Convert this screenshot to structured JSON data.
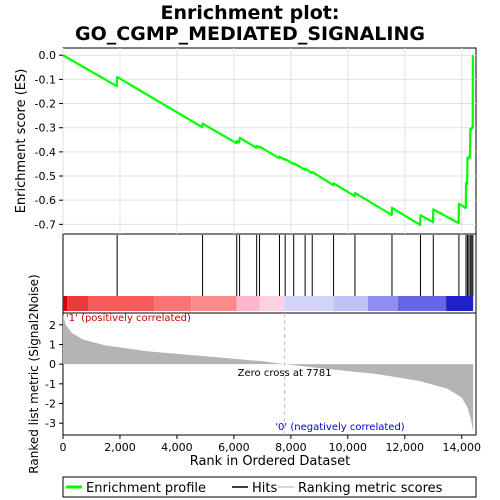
{
  "chart_data": {
    "type": "line",
    "title_line1": "Enrichment plot:",
    "title_line2": "GO_CGMP_MEDIATED_SIGNALING",
    "es_ylabel": "Enrichment score (ES)",
    "metric_ylabel": "Ranked list metric (Signal2Noise)",
    "xlabel": "Rank in Ordered Dataset",
    "xlim": [
      0,
      14500
    ],
    "x_ticks": [
      0,
      2000,
      4000,
      6000,
      8000,
      10000,
      12000,
      14000
    ],
    "x_tick_labels": [
      "0",
      "2,000",
      "4,000",
      "6,000",
      "8,000",
      "10,000",
      "12,000",
      "14,000"
    ],
    "es_ylim": [
      -0.74,
      0.03
    ],
    "es_ticks": [
      0.0,
      -0.1,
      -0.2,
      -0.3,
      -0.4,
      -0.5,
      -0.6,
      -0.7
    ],
    "es_tick_labels": [
      "0.0",
      "-0.1",
      "-0.2",
      "-0.3",
      "-0.4",
      "-0.5",
      "-0.6",
      "-0.7"
    ],
    "metric_ylim": [
      -3.6,
      2.6
    ],
    "metric_ticks": [
      2,
      1,
      0,
      -1,
      -2,
      -3
    ],
    "metric_tick_labels": [
      "2",
      "1",
      "0",
      "-1",
      "-2",
      "-3"
    ],
    "total_ranks": 14400,
    "hits": [
      1900,
      4900,
      6100,
      6200,
      6800,
      6900,
      7600,
      7800,
      8100,
      8500,
      8750,
      9500,
      10250,
      11550,
      12550,
      13000,
      13900,
      14150,
      14200,
      14250,
      14300,
      14350,
      14390
    ],
    "es_points": [
      {
        "x": 0,
        "es": 0.0
      },
      {
        "x": 1890,
        "es": -0.128
      },
      {
        "x": 1900,
        "es": -0.09
      },
      {
        "x": 4890,
        "es": -0.298
      },
      {
        "x": 4900,
        "es": -0.283
      },
      {
        "x": 6090,
        "es": -0.364
      },
      {
        "x": 6100,
        "es": -0.355
      },
      {
        "x": 6190,
        "es": -0.361
      },
      {
        "x": 6200,
        "es": -0.342
      },
      {
        "x": 6790,
        "es": -0.383
      },
      {
        "x": 6800,
        "es": -0.375
      },
      {
        "x": 6890,
        "es": -0.381
      },
      {
        "x": 6900,
        "es": -0.378
      },
      {
        "x": 7590,
        "es": -0.426
      },
      {
        "x": 7600,
        "es": -0.42
      },
      {
        "x": 7790,
        "es": -0.433
      },
      {
        "x": 7800,
        "es": -0.43
      },
      {
        "x": 8090,
        "es": -0.45
      },
      {
        "x": 8100,
        "es": -0.447
      },
      {
        "x": 8490,
        "es": -0.474
      },
      {
        "x": 8500,
        "es": -0.47
      },
      {
        "x": 8740,
        "es": -0.487
      },
      {
        "x": 8750,
        "es": -0.483
      },
      {
        "x": 9490,
        "es": -0.538
      },
      {
        "x": 9500,
        "es": -0.53
      },
      {
        "x": 10240,
        "es": -0.583
      },
      {
        "x": 10250,
        "es": -0.57
      },
      {
        "x": 11540,
        "es": -0.661
      },
      {
        "x": 11550,
        "es": -0.632
      },
      {
        "x": 12540,
        "es": -0.702
      },
      {
        "x": 12550,
        "es": -0.662
      },
      {
        "x": 12990,
        "es": -0.691
      },
      {
        "x": 13000,
        "es": -0.638
      },
      {
        "x": 13890,
        "es": -0.695
      },
      {
        "x": 13900,
        "es": -0.615
      },
      {
        "x": 14140,
        "es": -0.632
      },
      {
        "x": 14150,
        "es": -0.528
      },
      {
        "x": 14190,
        "es": -0.532
      },
      {
        "x": 14200,
        "es": -0.425
      },
      {
        "x": 14240,
        "es": -0.428
      },
      {
        "x": 14250,
        "es": -0.42
      },
      {
        "x": 14290,
        "es": -0.422
      },
      {
        "x": 14300,
        "es": -0.305
      },
      {
        "x": 14340,
        "es": -0.308
      },
      {
        "x": 14350,
        "es": -0.3
      },
      {
        "x": 14385,
        "es": -0.3
      },
      {
        "x": 14390,
        "es": 0.0
      }
    ],
    "metric_profile": [
      {
        "x": 0,
        "v": 2.5
      },
      {
        "x": 100,
        "v": 2.0
      },
      {
        "x": 300,
        "v": 1.6
      },
      {
        "x": 700,
        "v": 1.25
      },
      {
        "x": 1500,
        "v": 0.95
      },
      {
        "x": 3000,
        "v": 0.65
      },
      {
        "x": 5000,
        "v": 0.4
      },
      {
        "x": 7000,
        "v": 0.15
      },
      {
        "x": 7781,
        "v": 0.0
      },
      {
        "x": 9000,
        "v": -0.2
      },
      {
        "x": 11000,
        "v": -0.5
      },
      {
        "x": 12500,
        "v": -0.85
      },
      {
        "x": 13500,
        "v": -1.25
      },
      {
        "x": 14000,
        "v": -1.7
      },
      {
        "x": 14200,
        "v": -2.2
      },
      {
        "x": 14320,
        "v": -2.8
      },
      {
        "x": 14400,
        "v": -3.45
      }
    ],
    "heat_segments": [
      {
        "x0": 0,
        "x1": 150,
        "color": "#d60000"
      },
      {
        "x0": 150,
        "x1": 900,
        "color": "#ec3a3a"
      },
      {
        "x0": 900,
        "x1": 3200,
        "color": "#fa5a5a"
      },
      {
        "x0": 3200,
        "x1": 4500,
        "color": "#fb7474"
      },
      {
        "x0": 4500,
        "x1": 6100,
        "color": "#fc8a8a"
      },
      {
        "x0": 6100,
        "x1": 6900,
        "color": "#fdb8d0"
      },
      {
        "x0": 6900,
        "x1": 7750,
        "color": "#fdd0e2"
      },
      {
        "x0": 7750,
        "x1": 9500,
        "color": "#d4d4fa"
      },
      {
        "x0": 9500,
        "x1": 10700,
        "color": "#c2c2f8"
      },
      {
        "x0": 10700,
        "x1": 11750,
        "color": "#8f8ff2"
      },
      {
        "x0": 11750,
        "x1": 13450,
        "color": "#6666ea"
      },
      {
        "x0": 13450,
        "x1": 14400,
        "color": "#2020cc"
      }
    ],
    "zero_cross_rank": 7781,
    "zero_cross_label": "Zero cross at 7781",
    "pos_label": "'1' (positively correlated)",
    "neg_label": "'0' (negatively correlated)",
    "legend": [
      "Enrichment profile",
      "Hits",
      "Ranking metric scores"
    ],
    "colors": {
      "es_line": "#00ff00",
      "hits": "#000000",
      "metric_fill": "#b4b4b4",
      "pos_label": "#cc0000",
      "neg_label": "#0000cc",
      "zero_line": "#c0c0c0"
    }
  }
}
